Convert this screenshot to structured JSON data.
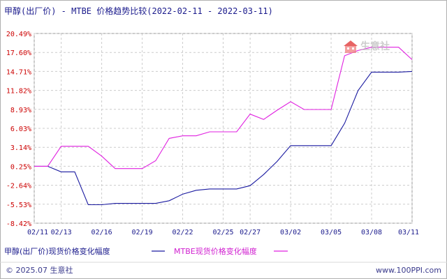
{
  "chart_data": {
    "type": "line",
    "title": "甲醇(出厂价) - MTBE 价格趋势比较(2022-02-11 - 2022-03-11)",
    "x_ticks": [
      "02/11",
      "02/13",
      "02/16",
      "02/19",
      "02/22",
      "02/25",
      "02/27",
      "03/02",
      "03/05",
      "03/08",
      "03/11"
    ],
    "y_ticks": [
      "20.49%",
      "17.60%",
      "14.71%",
      "11.82%",
      "8.93%",
      "6.03%",
      "3.14%",
      "0.25%",
      "-2.64%",
      "-5.53%",
      "-8.42%"
    ],
    "ylim": [
      -8.42,
      20.49
    ],
    "series": [
      {
        "name": "甲醇(出厂价)现货价格变化幅度",
        "color": "#1a1aa0",
        "points": [
          [
            "02/11",
            0.25
          ],
          [
            "02/12",
            0.25
          ],
          [
            "02/13",
            -0.6
          ],
          [
            "02/14",
            -0.6
          ],
          [
            "02/15",
            -5.6
          ],
          [
            "02/16",
            -5.6
          ],
          [
            "02/17",
            -5.4
          ],
          [
            "02/18",
            -5.4
          ],
          [
            "02/19",
            -5.4
          ],
          [
            "02/20",
            -5.4
          ],
          [
            "02/21",
            -5.0
          ],
          [
            "02/22",
            -4.0
          ],
          [
            "02/23",
            -3.4
          ],
          [
            "02/24",
            -3.2
          ],
          [
            "02/25",
            -3.2
          ],
          [
            "02/26",
            -3.2
          ],
          [
            "02/27",
            -2.7
          ],
          [
            "02/28",
            -1.0
          ],
          [
            "03/01",
            1.0
          ],
          [
            "03/02",
            3.4
          ],
          [
            "03/03",
            3.4
          ],
          [
            "03/04",
            3.4
          ],
          [
            "03/05",
            3.4
          ],
          [
            "03/06",
            6.8
          ],
          [
            "03/07",
            11.8
          ],
          [
            "03/08",
            14.6
          ],
          [
            "03/09",
            14.6
          ],
          [
            "03/10",
            14.6
          ],
          [
            "03/11",
            14.71
          ]
        ]
      },
      {
        "name": "MTBE现货价格变化幅度",
        "color": "#e020e0",
        "points": [
          [
            "02/11",
            0.25
          ],
          [
            "02/12",
            0.25
          ],
          [
            "02/13",
            3.3
          ],
          [
            "02/14",
            3.3
          ],
          [
            "02/15",
            3.3
          ],
          [
            "02/16",
            1.8
          ],
          [
            "02/17",
            -0.1
          ],
          [
            "02/18",
            -0.1
          ],
          [
            "02/19",
            -0.1
          ],
          [
            "02/20",
            1.1
          ],
          [
            "02/21",
            4.5
          ],
          [
            "02/22",
            4.9
          ],
          [
            "02/23",
            4.9
          ],
          [
            "02/24",
            5.5
          ],
          [
            "02/25",
            5.5
          ],
          [
            "02/26",
            5.5
          ],
          [
            "02/27",
            8.2
          ],
          [
            "02/28",
            7.4
          ],
          [
            "03/01",
            8.8
          ],
          [
            "03/02",
            10.1
          ],
          [
            "03/03",
            8.9
          ],
          [
            "03/04",
            8.9
          ],
          [
            "03/05",
            8.9
          ],
          [
            "03/06",
            17.1
          ],
          [
            "03/07",
            17.9
          ],
          [
            "03/08",
            18.4
          ],
          [
            "03/09",
            18.4
          ],
          [
            "03/10",
            18.4
          ],
          [
            "03/11",
            16.5
          ]
        ]
      }
    ],
    "grid": true,
    "legend_position": "bottom-left"
  },
  "colors": {
    "title": "#1a1a8c",
    "ytick": "#cc0000",
    "grid": "#cccccc"
  },
  "legend": {
    "item1": "甲醇(出厂价)现货价格变化幅度",
    "item2": "MTBE现货价格变化幅度"
  },
  "footer": {
    "copyright": "© 2025.07 生意社",
    "url": "www.100PPI.com"
  },
  "watermark": {
    "text": "生意社",
    "logo": "100ppi-logo-icon"
  }
}
